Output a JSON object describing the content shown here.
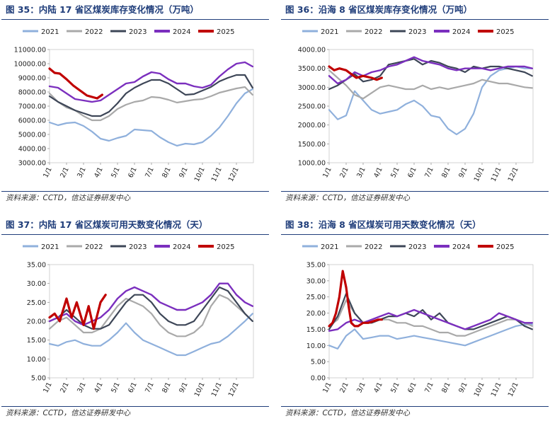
{
  "source": "资料来源：CCTD，信达证券研发中心",
  "colors": {
    "2021": "#8fb0dc",
    "2022": "#a9a9a9",
    "2023": "#3d4657",
    "2024": "#7b2fbe",
    "2025": "#c00000"
  },
  "chart_data": [
    {
      "id": "fig35",
      "type": "line",
      "title": "图 35：内陆 17 省区煤炭库存变化情况（万吨）",
      "unit": "万吨",
      "x_ticks": [
        "1/1",
        "2/1",
        "3/1",
        "4/1",
        "5/1",
        "6/1",
        "7/1",
        "8/1",
        "9/1",
        "10/1",
        "11/1",
        "12/1"
      ],
      "y_ticks": [
        "3000.00",
        "4000.00",
        "5000.00",
        "6000.00",
        "7000.00",
        "8000.00",
        "9000.00",
        "10000.00",
        "11000.00"
      ],
      "ylim": [
        3000,
        11000
      ],
      "series": [
        {
          "name": "2021",
          "x": [
            0,
            0.5,
            1,
            1.5,
            2,
            2.5,
            3,
            3.5,
            4,
            4.5,
            5,
            5.5,
            6,
            6.5,
            7,
            7.5,
            8,
            8.5,
            9,
            9.5,
            10,
            10.5,
            11,
            11.5,
            11.95
          ],
          "values": [
            5850,
            5650,
            5800,
            5850,
            5600,
            5200,
            4700,
            4550,
            4750,
            4900,
            5350,
            5300,
            5250,
            4800,
            4450,
            4200,
            4350,
            4300,
            4450,
            4900,
            5500,
            6300,
            7200,
            7900,
            8200
          ]
        },
        {
          "name": "2022",
          "x": [
            0,
            0.5,
            1,
            1.5,
            2,
            2.5,
            3,
            3.5,
            4,
            4.5,
            5,
            5.5,
            6,
            6.5,
            7,
            7.5,
            8,
            8.5,
            9,
            9.5,
            10,
            10.5,
            11,
            11.5,
            11.95
          ],
          "values": [
            7900,
            7300,
            6900,
            6700,
            6300,
            6000,
            6000,
            6300,
            6800,
            7100,
            7300,
            7400,
            7650,
            7600,
            7450,
            7250,
            7350,
            7450,
            7500,
            7700,
            7950,
            8100,
            8250,
            8350,
            7800
          ]
        },
        {
          "name": "2023",
          "x": [
            0,
            0.5,
            1,
            1.5,
            2,
            2.5,
            3,
            3.5,
            4,
            4.5,
            5,
            5.5,
            6,
            6.5,
            7,
            7.5,
            8,
            8.5,
            9,
            9.5,
            10,
            10.5,
            11,
            11.5,
            11.95
          ],
          "values": [
            7700,
            7300,
            7000,
            6700,
            6500,
            6300,
            6300,
            6600,
            7200,
            7900,
            8300,
            8600,
            8850,
            8850,
            8600,
            8200,
            7800,
            7850,
            8100,
            8350,
            8750,
            9000,
            9200,
            9200,
            8300
          ]
        },
        {
          "name": "2024",
          "x": [
            0,
            0.5,
            1,
            1.5,
            2,
            2.5,
            3,
            3.5,
            4,
            4.5,
            5,
            5.5,
            6,
            6.5,
            7,
            7.5,
            8,
            8.5,
            9,
            9.5,
            10,
            10.5,
            11,
            11.5,
            11.95
          ],
          "values": [
            8400,
            8300,
            7900,
            7500,
            7400,
            7300,
            7400,
            7800,
            8200,
            8600,
            8700,
            9100,
            9400,
            9300,
            8900,
            8600,
            8600,
            8400,
            8300,
            8500,
            9100,
            9600,
            10000,
            10100,
            9800
          ]
        },
        {
          "name": "2025",
          "x": [
            0,
            0.3,
            0.6,
            1,
            1.4,
            1.8,
            2.2,
            2.5,
            2.8,
            3.1
          ],
          "values": [
            9650,
            9350,
            9300,
            8900,
            8450,
            8100,
            7750,
            7650,
            7550,
            7800
          ]
        }
      ]
    },
    {
      "id": "fig36",
      "type": "line",
      "title": "图 36：沿海 8 省区煤炭库存变化情况（万吨）",
      "unit": "万吨",
      "x_ticks": [
        "1/1",
        "2/1",
        "3/1",
        "4/1",
        "5/1",
        "6/1",
        "7/1",
        "8/1",
        "9/1",
        "10/1",
        "11/1",
        "12/1"
      ],
      "y_ticks": [
        "1000.00",
        "1500.00",
        "2000.00",
        "2500.00",
        "3000.00",
        "3500.00",
        "4000.00"
      ],
      "ylim": [
        1000,
        4000
      ],
      "series": [
        {
          "name": "2021",
          "x": [
            0,
            0.5,
            1,
            1.5,
            2,
            2.5,
            3,
            3.5,
            4,
            4.5,
            5,
            5.5,
            6,
            6.5,
            7,
            7.5,
            8,
            8.5,
            9,
            9.5,
            10,
            10.5,
            11,
            11.5,
            11.95
          ],
          "values": [
            2400,
            2150,
            2250,
            2900,
            2650,
            2400,
            2300,
            2350,
            2400,
            2550,
            2650,
            2500,
            2250,
            2200,
            1900,
            1750,
            1900,
            2300,
            3000,
            3300,
            3450,
            3500,
            3550,
            3500,
            3500
          ]
        },
        {
          "name": "2022",
          "x": [
            0,
            0.5,
            1,
            1.5,
            2,
            2.5,
            3,
            3.5,
            4,
            4.5,
            5,
            5.5,
            6,
            6.5,
            7,
            7.5,
            8,
            8.5,
            9,
            9.5,
            10,
            10.5,
            11,
            11.5,
            11.95
          ],
          "values": [
            3450,
            3250,
            3050,
            2800,
            2700,
            2850,
            3000,
            3050,
            3000,
            2950,
            2950,
            3050,
            2950,
            3000,
            2950,
            3000,
            3050,
            3100,
            3200,
            3150,
            3100,
            3100,
            3050,
            3000,
            2980
          ]
        },
        {
          "name": "2023",
          "x": [
            0,
            0.5,
            1,
            1.5,
            2,
            2.5,
            3,
            3.5,
            4,
            4.5,
            5,
            5.5,
            6,
            6.5,
            7,
            7.5,
            8,
            8.5,
            9,
            9.5,
            10,
            10.5,
            11,
            11.5,
            11.95
          ],
          "values": [
            2950,
            3050,
            3200,
            3350,
            3150,
            3200,
            3300,
            3600,
            3650,
            3700,
            3750,
            3600,
            3700,
            3650,
            3550,
            3500,
            3400,
            3550,
            3500,
            3550,
            3550,
            3500,
            3450,
            3400,
            3300
          ]
        },
        {
          "name": "2024",
          "x": [
            0,
            0.5,
            1,
            1.5,
            2,
            2.5,
            3,
            3.5,
            4,
            4.5,
            5,
            5.5,
            6,
            6.5,
            7,
            7.5,
            8,
            8.5,
            9,
            9.5,
            10,
            10.5,
            11,
            11.5,
            11.95
          ],
          "values": [
            3300,
            3100,
            3200,
            3400,
            3300,
            3400,
            3450,
            3550,
            3600,
            3700,
            3800,
            3700,
            3650,
            3600,
            3500,
            3450,
            3500,
            3500,
            3500,
            3450,
            3500,
            3550,
            3550,
            3550,
            3500
          ]
        },
        {
          "name": "2025",
          "x": [
            0,
            0.3,
            0.6,
            1,
            1.3,
            1.6,
            2,
            2.5,
            2.8,
            3.1
          ],
          "values": [
            3550,
            3450,
            3500,
            3450,
            3350,
            3250,
            3300,
            3250,
            3200,
            3250
          ]
        }
      ]
    },
    {
      "id": "fig37",
      "type": "line",
      "title": "图 37：内陆 17 省区煤炭可用天数变化情况（天）",
      "unit": "天",
      "x_ticks": [
        "1/1",
        "2/1",
        "3/1",
        "4/1",
        "5/1",
        "6/1",
        "7/1",
        "8/1",
        "9/1",
        "10/1",
        "11/1",
        "12/1"
      ],
      "y_ticks": [
        "5.00",
        "10.00",
        "15.00",
        "20.00",
        "25.00",
        "30.00",
        "35.00"
      ],
      "ylim": [
        5,
        35
      ],
      "series": [
        {
          "name": "2021",
          "x": [
            0,
            0.5,
            1,
            1.5,
            2,
            2.5,
            3,
            3.5,
            4,
            4.5,
            5,
            5.5,
            6,
            6.5,
            7,
            7.5,
            8,
            8.5,
            9,
            9.5,
            10,
            10.5,
            11,
            11.5,
            11.95
          ],
          "values": [
            14,
            13.5,
            14.5,
            15,
            14,
            13.5,
            13.5,
            15,
            17,
            19.5,
            17,
            15,
            14,
            13,
            12,
            11,
            11,
            12,
            13,
            14,
            14.5,
            16,
            18,
            20,
            22
          ]
        },
        {
          "name": "2022",
          "x": [
            0,
            0.5,
            1,
            1.5,
            2,
            2.5,
            3,
            3.5,
            4,
            4.5,
            5,
            5.5,
            6,
            6.5,
            7,
            7.5,
            8,
            8.5,
            9,
            9.5,
            10,
            10.5,
            11,
            11.5,
            11.95
          ],
          "values": [
            18,
            20,
            21,
            19,
            17,
            17,
            18,
            21,
            24,
            26,
            25,
            24,
            22,
            19,
            17,
            16,
            16,
            17,
            19,
            24,
            27,
            26,
            24,
            22,
            20
          ]
        },
        {
          "name": "2023",
          "x": [
            0,
            0.5,
            1,
            1.5,
            2,
            2.5,
            3,
            3.5,
            4,
            4.5,
            5,
            5.5,
            6,
            6.5,
            7,
            7.5,
            8,
            8.5,
            9,
            9.5,
            10,
            10.5,
            11,
            11.5,
            11.95
          ],
          "values": [
            20,
            21,
            23,
            21,
            19,
            18,
            18,
            19,
            22,
            25,
            27,
            27,
            25,
            22,
            20,
            19,
            19,
            20,
            23,
            26,
            29,
            28,
            25,
            22,
            20
          ]
        },
        {
          "name": "2024",
          "x": [
            0,
            0.5,
            1,
            1.5,
            2,
            2.5,
            3,
            3.5,
            4,
            4.5,
            5,
            5.5,
            6,
            6.5,
            7,
            7.5,
            8,
            8.5,
            9,
            9.5,
            10,
            10.5,
            11,
            11.5,
            11.95
          ],
          "values": [
            20,
            21,
            22,
            20,
            19,
            20,
            21,
            23,
            26,
            28,
            29,
            28,
            27,
            25,
            24,
            23,
            23,
            24,
            25,
            27,
            30,
            30,
            27,
            25,
            24
          ]
        },
        {
          "name": "2025",
          "x": [
            0,
            0.3,
            0.6,
            1,
            1.3,
            1.6,
            2,
            2.3,
            2.6,
            3,
            3.3
          ],
          "values": [
            21,
            22,
            20,
            26,
            21,
            25,
            19,
            24,
            18,
            25,
            27
          ]
        }
      ]
    },
    {
      "id": "fig38",
      "type": "line",
      "title": "图 38：沿海 8 省区煤炭可用天数变化情况（天）",
      "unit": "天",
      "x_ticks": [
        "1/1",
        "2/1",
        "3/1",
        "4/1",
        "5/1",
        "6/1",
        "7/1",
        "8/1",
        "9/1",
        "10/1",
        "11/1",
        "12/1"
      ],
      "y_ticks": [
        "0.00",
        "5.00",
        "10.00",
        "15.00",
        "20.00",
        "25.00",
        "30.00",
        "35.00"
      ],
      "ylim": [
        0,
        35
      ],
      "series": [
        {
          "name": "2021",
          "x": [
            0,
            0.5,
            1,
            1.5,
            2,
            2.5,
            3,
            3.5,
            4,
            4.5,
            5,
            5.5,
            6,
            6.5,
            7,
            7.5,
            8,
            8.5,
            9,
            9.5,
            10,
            10.5,
            11,
            11.5,
            11.95
          ],
          "values": [
            10,
            9,
            13,
            15,
            12,
            12.5,
            13,
            13,
            12,
            12.5,
            13,
            12.5,
            12,
            11.5,
            11,
            10.5,
            10,
            11,
            12,
            13,
            14,
            15,
            16,
            16.5,
            16.5
          ]
        },
        {
          "name": "2022",
          "x": [
            0,
            0.5,
            1,
            1.5,
            2,
            2.5,
            3,
            3.5,
            4,
            4.5,
            5,
            5.5,
            6,
            6.5,
            7,
            7.5,
            8,
            8.5,
            9,
            9.5,
            10,
            10.5,
            11,
            11.5,
            11.95
          ],
          "values": [
            16,
            18,
            24,
            20,
            17,
            17,
            18,
            18,
            17,
            17,
            16,
            16,
            15,
            14,
            14,
            13,
            13,
            14,
            15,
            16,
            17,
            18,
            18,
            17,
            16
          ]
        },
        {
          "name": "2023",
          "x": [
            0,
            0.5,
            1,
            1.5,
            2,
            2.5,
            3,
            3.5,
            4,
            4.5,
            5,
            5.5,
            6,
            6.5,
            7,
            7.5,
            8,
            8.5,
            9,
            9.5,
            10,
            10.5,
            11,
            11.5,
            11.95
          ],
          "values": [
            15,
            19,
            26,
            20,
            17,
            17,
            18,
            19,
            19,
            20,
            19,
            21,
            18,
            20,
            17,
            16,
            15,
            15,
            16,
            17,
            18,
            19,
            18,
            16,
            15
          ]
        },
        {
          "name": "2024",
          "x": [
            0,
            0.5,
            1,
            1.5,
            2,
            2.5,
            3,
            3.5,
            4,
            4.5,
            5,
            5.5,
            6,
            6.5,
            7,
            7.5,
            8,
            8.5,
            9,
            9.5,
            10,
            10.5,
            11,
            11.5,
            11.95
          ],
          "values": [
            14.5,
            15,
            17,
            18,
            17,
            18,
            19,
            20,
            19,
            20,
            21,
            20,
            19,
            18,
            17,
            16,
            15,
            16,
            17,
            18,
            20,
            19,
            18,
            17,
            17
          ]
        },
        {
          "name": "2025",
          "x": [
            0,
            0.2,
            0.4,
            0.6,
            0.8,
            1,
            1.15,
            1.3,
            1.5,
            1.7,
            2,
            2.3,
            2.6,
            2.9,
            3.1
          ],
          "values": [
            16,
            17,
            20,
            25,
            33,
            28,
            22,
            17,
            16,
            16,
            17,
            17,
            17.5,
            18,
            18
          ]
        }
      ]
    }
  ]
}
